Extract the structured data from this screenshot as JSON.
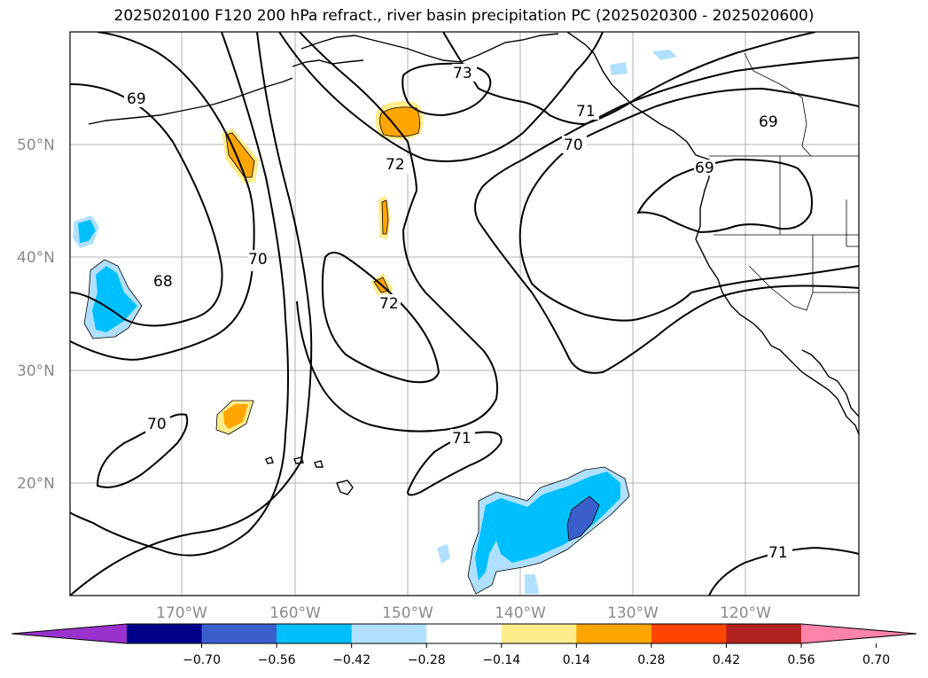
{
  "title": "2025020100 F120 200 hPa refract., river basin precipitation PC (2025020300 - 2025020600)",
  "lat_labels": [
    "50°N",
    "40°N",
    "30°N",
    "20°N"
  ],
  "lon_labels": [
    "170°W",
    "160°W",
    "150°W",
    "140°W",
    "130°W",
    "120°W"
  ],
  "contour_labels": {
    "c73": "73",
    "c71a": "71",
    "c69a": "69",
    "c70a": "70",
    "c72a": "72",
    "c69b": "69",
    "c69c": "69",
    "c68": "68",
    "c70b": "70",
    "c72b": "72",
    "c70c": "70",
    "c71b": "71",
    "c71c": "71"
  },
  "colorbar": {
    "labels": [
      "−0.70",
      "−0.56",
      "−0.42",
      "−0.28",
      "−0.14",
      "0.14",
      "0.28",
      "0.42",
      "0.56",
      "0.70"
    ],
    "colors": [
      "#9932cc",
      "#00008b",
      "#3a5fcd",
      "#00bfff",
      "#b0e0ff",
      "#ffffff",
      "#ffec8b",
      "#ffa500",
      "#ff4500",
      "#b22222",
      "#ff82ab"
    ]
  },
  "fill_colors": {
    "pos1": "#ffec8b",
    "pos2": "#ffa500",
    "neg1": "#b0e0ff",
    "neg2": "#00bfff",
    "neg3": "#3a5fcd"
  }
}
